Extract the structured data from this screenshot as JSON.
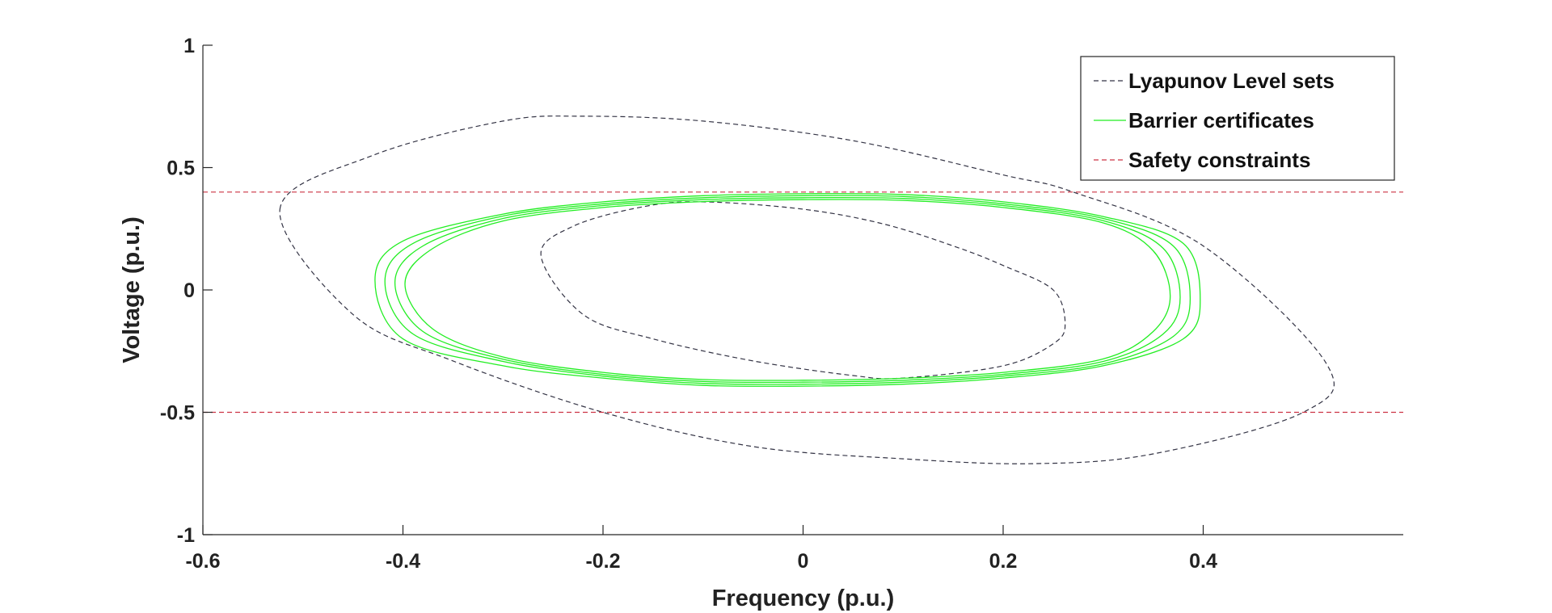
{
  "chart_data": {
    "type": "line",
    "xlabel": "Frequency (p.u.)",
    "ylabel": "Voltage (p.u.)",
    "xlim": [
      -0.6,
      0.6
    ],
    "ylim": [
      -1,
      1
    ],
    "x_ticks": [
      {
        "value": -0.6,
        "label": "-0.6"
      },
      {
        "value": -0.4,
        "label": "-0.4"
      },
      {
        "value": -0.2,
        "label": "-0.2"
      },
      {
        "value": 0,
        "label": "0"
      },
      {
        "value": 0.2,
        "label": "0.2"
      },
      {
        "value": 0.4,
        "label": "0.4"
      }
    ],
    "y_ticks": [
      {
        "value": -1,
        "label": "-1"
      },
      {
        "value": -0.5,
        "label": "-0.5"
      },
      {
        "value": 0,
        "label": "0"
      },
      {
        "value": 0.5,
        "label": "0.5"
      },
      {
        "value": 1,
        "label": "1"
      }
    ],
    "grid": false,
    "legend_position": "top-right",
    "series": [
      {
        "name": "Lyapunov Level sets",
        "color": "#333344",
        "style": "dashed",
        "curves": [
          {
            "x": [
              -0.523,
              -0.43,
              -0.3,
              -0.22,
              -0.1,
              0.05,
              0.2,
              0.27,
              0.4,
              0.523,
              0.5,
              0.35,
              0.23,
              0.1,
              -0.05,
              -0.2,
              -0.35,
              -0.45,
              -0.523
            ],
            "y": [
              0.33,
              0.55,
              0.69,
              0.71,
              0.69,
              0.61,
              0.47,
              0.4,
              0.18,
              -0.3,
              -0.5,
              -0.67,
              -0.71,
              -0.69,
              -0.64,
              -0.5,
              -0.29,
              -0.1,
              0.33
            ]
          },
          {
            "x": [
              -0.262,
              -0.23,
              -0.16,
              -0.1,
              0.0,
              0.08,
              0.15,
              0.2,
              0.25,
              0.262,
              0.25,
              0.2,
              0.1,
              0.05,
              -0.05,
              -0.15,
              -0.22,
              -0.262
            ],
            "y": [
              0.14,
              0.26,
              0.34,
              0.36,
              0.33,
              0.27,
              0.18,
              0.1,
              0.0,
              -0.14,
              -0.22,
              -0.31,
              -0.36,
              -0.35,
              -0.29,
              -0.2,
              -0.1,
              0.14
            ]
          }
        ]
      },
      {
        "name": "Barrier certificates",
        "color": "#22ee22",
        "style": "solid",
        "curves": [
          {
            "x": [
              -0.428,
              -0.4,
              -0.3,
              -0.2,
              -0.1,
              0.0,
              0.1,
              0.2,
              0.3,
              0.38,
              0.397,
              0.38,
              0.3,
              0.2,
              0.1,
              0.0,
              -0.1,
              -0.2,
              -0.3,
              -0.4,
              -0.428
            ],
            "y": [
              0.04,
              0.2,
              0.31,
              0.36,
              0.385,
              0.393,
              0.39,
              0.36,
              0.3,
              0.19,
              -0.04,
              -0.2,
              -0.31,
              -0.36,
              -0.385,
              -0.393,
              -0.39,
              -0.36,
              -0.31,
              -0.2,
              0.04
            ]
          },
          {
            "x": [
              -0.418,
              -0.39,
              -0.3,
              -0.2,
              -0.1,
              0.0,
              0.1,
              0.2,
              0.3,
              0.37,
              0.387,
              0.37,
              0.3,
              0.2,
              0.1,
              0.0,
              -0.1,
              -0.2,
              -0.3,
              -0.39,
              -0.418
            ],
            "y": [
              0.035,
              0.19,
              0.302,
              0.352,
              0.377,
              0.385,
              0.382,
              0.352,
              0.292,
              0.18,
              -0.035,
              -0.19,
              -0.302,
              -0.352,
              -0.377,
              -0.385,
              -0.382,
              -0.352,
              -0.292,
              -0.18,
              0.035
            ]
          },
          {
            "x": [
              -0.408,
              -0.38,
              -0.3,
              -0.2,
              -0.1,
              0.0,
              0.1,
              0.2,
              0.3,
              0.36,
              0.377,
              0.36,
              0.3,
              0.2,
              0.1,
              0.0,
              -0.1,
              -0.2,
              -0.3,
              -0.38,
              -0.408
            ],
            "y": [
              0.03,
              0.18,
              0.292,
              0.345,
              0.369,
              0.377,
              0.374,
              0.345,
              0.283,
              0.17,
              -0.03,
              -0.18,
              -0.292,
              -0.345,
              -0.369,
              -0.377,
              -0.374,
              -0.345,
              -0.283,
              -0.17,
              0.03
            ]
          },
          {
            "x": [
              -0.398,
              -0.37,
              -0.3,
              -0.2,
              -0.1,
              0.0,
              0.1,
              0.2,
              0.3,
              0.35,
              0.367,
              0.35,
              0.3,
              0.2,
              0.1,
              0.0,
              -0.1,
              -0.2,
              -0.3,
              -0.37,
              -0.398
            ],
            "y": [
              0.025,
              0.17,
              0.282,
              0.337,
              0.361,
              0.369,
              0.366,
              0.337,
              0.274,
              0.16,
              -0.025,
              -0.17,
              -0.282,
              -0.337,
              -0.361,
              -0.369,
              -0.366,
              -0.337,
              -0.274,
              -0.16,
              0.025
            ]
          }
        ]
      },
      {
        "name": "Safety constraints",
        "color": "#cc3344",
        "style": "dashed",
        "curves": [
          {
            "x": [
              -0.6,
              0.6
            ],
            "y": [
              0.4,
              0.4
            ]
          },
          {
            "x": [
              -0.6,
              0.6
            ],
            "y": [
              -0.5,
              -0.5
            ]
          }
        ]
      }
    ]
  }
}
